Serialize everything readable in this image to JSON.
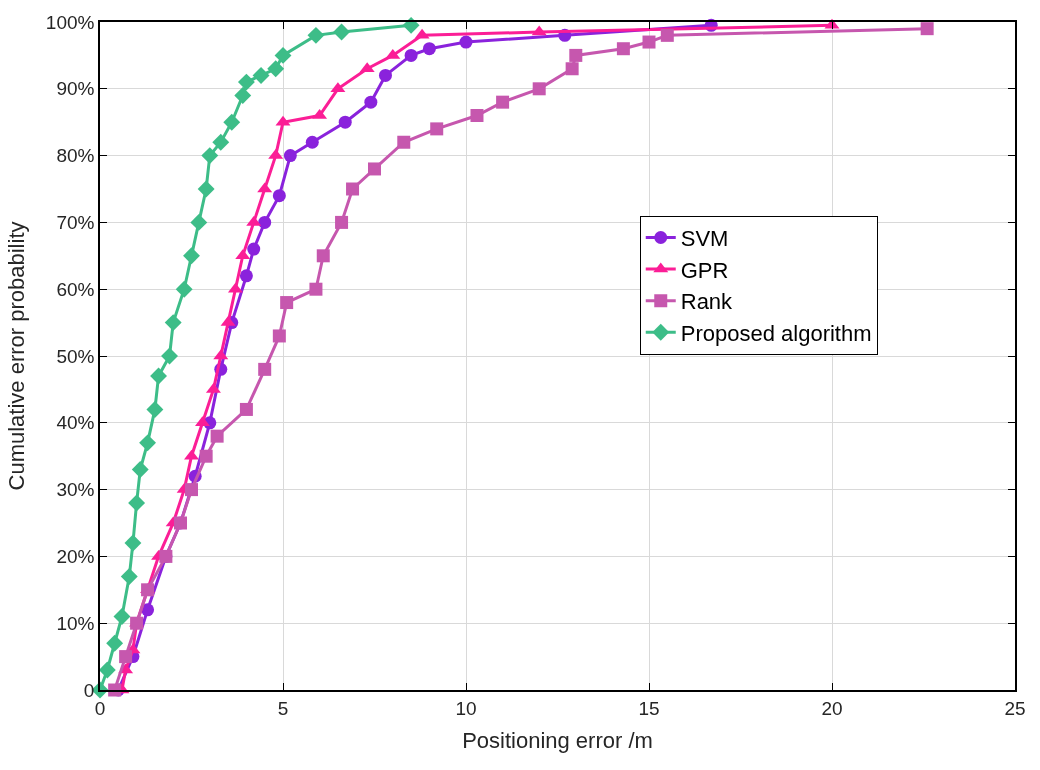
{
  "chart_data": {
    "type": "line",
    "xlabel": "Positioning error /m",
    "ylabel": "Cumulative error probability",
    "xlim": [
      0,
      25
    ],
    "xticks": [
      0,
      5,
      10,
      15,
      20,
      25
    ],
    "ylim": [
      0,
      100
    ],
    "yticks": [
      {
        "value": 0,
        "label": "0"
      },
      {
        "value": 10,
        "label": "10%"
      },
      {
        "value": 20,
        "label": "20%"
      },
      {
        "value": 30,
        "label": "30%"
      },
      {
        "value": 40,
        "label": "40%"
      },
      {
        "value": 50,
        "label": "50%"
      },
      {
        "value": 60,
        "label": "60%"
      },
      {
        "value": 70,
        "label": "70%"
      },
      {
        "value": 80,
        "label": "80%"
      },
      {
        "value": 90,
        "label": "90%"
      },
      {
        "value": 100,
        "label": "100%"
      }
    ],
    "grid": true,
    "legend": "right",
    "line_style": "solid",
    "series": [
      {
        "name": "SVM",
        "color": "#8a22dc",
        "marker": "circle",
        "x": [
          0.5,
          0.9,
          1.3,
          1.8,
          2.2,
          2.6,
          3.0,
          3.3,
          3.6,
          4.0,
          4.2,
          4.5,
          4.9,
          5.2,
          5.8,
          6.7,
          7.4,
          7.8,
          8.5,
          9.0,
          10.0,
          12.7,
          16.7
        ],
        "values": [
          0,
          5,
          12,
          20,
          25,
          32,
          40,
          48,
          55,
          62,
          66,
          70,
          74,
          80,
          82,
          85,
          88,
          92,
          95,
          96,
          97,
          98,
          99.5
        ]
      },
      {
        "name": "GPR",
        "color": "#fb1e96",
        "marker": "triangle",
        "x": [
          0.6,
          0.7,
          0.9,
          1.0,
          1.3,
          1.6,
          2.0,
          2.3,
          2.5,
          2.8,
          3.1,
          3.3,
          3.5,
          3.7,
          3.9,
          4.2,
          4.5,
          4.8,
          5.0,
          6.0,
          6.5,
          7.3,
          8.0,
          8.8,
          12.0,
          20.0
        ],
        "values": [
          0,
          3,
          6,
          10,
          15,
          20,
          25,
          30,
          35,
          40,
          45,
          50,
          55,
          60,
          65,
          70,
          75,
          80,
          85,
          86,
          90,
          93,
          95,
          98,
          98.5,
          99.5
        ]
      },
      {
        "name": "Rank",
        "color": "#c657ae",
        "marker": "square",
        "x": [
          0.4,
          0.7,
          1.0,
          1.3,
          1.8,
          2.2,
          2.5,
          2.9,
          3.2,
          4.0,
          4.5,
          4.9,
          5.1,
          5.9,
          6.1,
          6.6,
          6.9,
          7.5,
          8.3,
          9.2,
          10.3,
          11.0,
          12.0,
          12.9,
          13.0,
          14.3,
          15.0,
          15.5,
          22.6
        ],
        "values": [
          0,
          5,
          10,
          15,
          20,
          25,
          30,
          35,
          38,
          42,
          48,
          53,
          58,
          60,
          65,
          70,
          75,
          78,
          82,
          84,
          86,
          88,
          90,
          93,
          95,
          96,
          97,
          98,
          99
        ]
      },
      {
        "name": "Proposed algorithm",
        "color": "#3dbd88",
        "marker": "diamond",
        "x": [
          0,
          0.2,
          0.4,
          0.6,
          0.8,
          0.9,
          1.0,
          1.1,
          1.3,
          1.5,
          1.6,
          1.9,
          2.0,
          2.3,
          2.5,
          2.7,
          2.9,
          3.0,
          3.3,
          3.6,
          3.9,
          4.0,
          4.4,
          4.8,
          5.0,
          5.9,
          6.6,
          8.5
        ],
        "values": [
          0,
          3,
          7,
          11,
          17,
          22,
          28,
          33,
          37,
          42,
          47,
          50,
          55,
          60,
          65,
          70,
          75,
          80,
          82,
          85,
          89,
          91,
          92,
          93,
          95,
          98,
          98.5,
          99.5
        ]
      }
    ]
  }
}
